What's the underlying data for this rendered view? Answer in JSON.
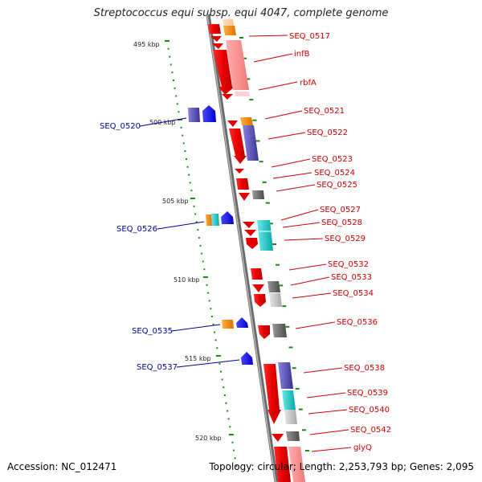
{
  "title": "Streptococcus equi subsp. equi 4047, complete genome",
  "accession": "Accession: NC_012471",
  "summary": "Topology: circular; Length: 2,253,793 bp; Genes: 2,095",
  "scale_labels": [
    "495 kbp",
    "500 kbp",
    "505 kbp",
    "510 kbp",
    "515 kbp",
    "520 kbp"
  ],
  "right_labels": [
    "SEQ_0517",
    "infB",
    "rbfA",
    "SEQ_0521",
    "SEQ_0522",
    "SEQ_0523",
    "SEQ_0524",
    "SEQ_0525",
    "SEQ_0527",
    "SEQ_0528",
    "SEQ_0529",
    "SEQ_0532",
    "SEQ_0533",
    "SEQ_0534",
    "SEQ_0536",
    "SEQ_0538",
    "SEQ_0539",
    "SEQ_0540",
    "SEQ_0542",
    "glyQ"
  ],
  "left_labels": [
    "SEQ_0520",
    "SEQ_0526",
    "SEQ_0535",
    "SEQ_0537"
  ],
  "colors": {
    "right_label": "#cc0000",
    "left_label": "#00009a",
    "backbone": "#7f7f7f",
    "tick": "#1a8c1a",
    "gene_red": "#ee0000",
    "gene_blue": "#0a0af0",
    "gene_orange": "#ff8c00",
    "gene_purple": "#5c55b8",
    "gene_cyan": "#11c6c6",
    "gene_gray": "#6b6b6b"
  }
}
